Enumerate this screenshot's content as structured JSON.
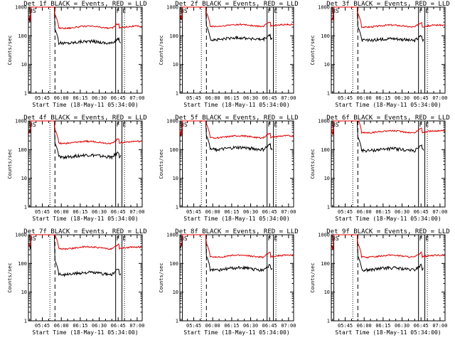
{
  "colors": {
    "events": "#000000",
    "lld": "#e00000",
    "axis": "#000000",
    "background": "#ffffff"
  },
  "chart_data": [
    {
      "type": "line",
      "title": "Det 1f BLACK = Events, RED = LLD",
      "xlabel": "Start Time (18-May-11 05:34:00)",
      "ylabel": "Counts/sec",
      "xticks": [
        "05:45",
        "06:00",
        "06:15",
        "06:30",
        "06:45",
        "07:00"
      ],
      "yticks": [
        "1",
        "10",
        "100",
        "1000"
      ],
      "ylog": true,
      "ylim": [
        1,
        1000
      ],
      "xlim_minutes": [
        0,
        90
      ],
      "markers": [
        "BS",
        "F",
        "E"
      ],
      "series": [
        {
          "name": "Events",
          "level_cps": 60
        },
        {
          "name": "LLD",
          "level_cps": 200
        }
      ]
    },
    {
      "type": "line",
      "title": "Det 2f BLACK = Events, RED = LLD",
      "xlabel": "Start Time (18-May-11 05:34:00)",
      "ylabel": "Counts/sec",
      "xticks": [
        "05:45",
        "06:00",
        "06:15",
        "06:30",
        "06:45",
        "07:00"
      ],
      "yticks": [
        "1",
        "10",
        "100",
        "1000"
      ],
      "ylog": true,
      "ylim": [
        1,
        1000
      ],
      "xlim_minutes": [
        0,
        90
      ],
      "markers": [
        "BS",
        "F",
        "E"
      ],
      "series": [
        {
          "name": "Events",
          "level_cps": 80
        },
        {
          "name": "LLD",
          "level_cps": 230
        }
      ]
    },
    {
      "type": "line",
      "title": "Det 3f BLACK = Events, RED = LLD",
      "xlabel": "Start Time (18-May-11 05:34:00)",
      "ylabel": "Counts/sec",
      "xticks": [
        "05:45",
        "06:00",
        "06:15",
        "06:30",
        "06:45",
        "07:00"
      ],
      "yticks": [
        "1",
        "10",
        "100",
        "1000"
      ],
      "ylog": true,
      "ylim": [
        1,
        1000
      ],
      "xlim_minutes": [
        0,
        90
      ],
      "markers": [
        "BS",
        "F",
        "E"
      ],
      "series": [
        {
          "name": "Events",
          "level_cps": 75
        },
        {
          "name": "LLD",
          "level_cps": 220
        }
      ]
    },
    {
      "type": "line",
      "title": "Det 4f BLACK = Events, RED = LLD",
      "xlabel": "Start Time (18-May-11 05:34:00)",
      "ylabel": "Counts/sec",
      "xticks": [
        "05:45",
        "06:00",
        "06:15",
        "06:30",
        "06:45",
        "07:00"
      ],
      "yticks": [
        "1",
        "10",
        "100",
        "1000"
      ],
      "ylog": true,
      "ylim": [
        1,
        1000
      ],
      "xlim_minutes": [
        0,
        90
      ],
      "markers": [
        "BS",
        "F",
        "E"
      ],
      "series": [
        {
          "name": "Events",
          "level_cps": 60
        },
        {
          "name": "LLD",
          "level_cps": 180
        }
      ]
    },
    {
      "type": "line",
      "title": "Det 5f BLACK = Events, RED = LLD",
      "xlabel": "Start Time (18-May-11 05:34:00)",
      "ylabel": "Counts/sec",
      "xticks": [
        "05:45",
        "06:00",
        "06:15",
        "06:30",
        "06:45",
        "07:00"
      ],
      "yticks": [
        "1",
        "10",
        "100",
        "1000"
      ],
      "ylog": true,
      "ylim": [
        1,
        1000
      ],
      "xlim_minutes": [
        0,
        90
      ],
      "markers": [
        "BS",
        "F",
        "E"
      ],
      "series": [
        {
          "name": "Events",
          "level_cps": 110
        },
        {
          "name": "LLD",
          "level_cps": 280
        }
      ]
    },
    {
      "type": "line",
      "title": "Det 6f BLACK = Events, RED = LLD",
      "xlabel": "Start Time (18-May-11 05:34:00)",
      "ylabel": "Counts/sec",
      "xticks": [
        "05:45",
        "06:00",
        "06:15",
        "06:30",
        "06:45",
        "07:00"
      ],
      "yticks": [
        "1",
        "10",
        "100",
        "1000"
      ],
      "ylog": true,
      "ylim": [
        1,
        1000
      ],
      "xlim_minutes": [
        0,
        90
      ],
      "markers": [
        "BS",
        "F",
        "E"
      ],
      "series": [
        {
          "name": "Events",
          "level_cps": 100
        },
        {
          "name": "LLD",
          "level_cps": 420
        }
      ]
    },
    {
      "type": "line",
      "title": "Det 7f BLACK = Events, RED = LLD",
      "xlabel": "Start Time (18-May-11 05:34:00)",
      "ylabel": "Counts/sec",
      "xticks": [
        "05:45",
        "06:00",
        "06:15",
        "06:30",
        "06:45",
        "07:00"
      ],
      "yticks": [
        "1",
        "10",
        "100",
        "1000"
      ],
      "ylog": true,
      "ylim": [
        1,
        1000
      ],
      "xlim_minutes": [
        0,
        90
      ],
      "markers": [
        "BS",
        "F",
        "E"
      ],
      "series": [
        {
          "name": "Events",
          "level_cps": 45
        },
        {
          "name": "LLD",
          "level_cps": 350
        }
      ]
    },
    {
      "type": "line",
      "title": "Det 8f BLACK = Events, RED = LLD",
      "xlabel": "Start Time (18-May-11 05:34:00)",
      "ylabel": "Counts/sec",
      "xticks": [
        "05:45",
        "06:00",
        "06:15",
        "06:30",
        "06:45",
        "07:00"
      ],
      "yticks": [
        "1",
        "10",
        "100",
        "1000"
      ],
      "ylog": true,
      "ylim": [
        1,
        1000
      ],
      "xlim_minutes": [
        0,
        90
      ],
      "markers": [
        "BS",
        "F",
        "E"
      ],
      "series": [
        {
          "name": "Events",
          "level_cps": 65
        },
        {
          "name": "LLD",
          "level_cps": 180
        }
      ]
    },
    {
      "type": "line",
      "title": "Det 9f BLACK = Events, RED = LLD",
      "xlabel": "Start Time (18-May-11 05:34:00)",
      "ylabel": "Counts/sec",
      "xticks": [
        "05:45",
        "06:00",
        "06:15",
        "06:30",
        "06:45",
        "07:00"
      ],
      "yticks": [
        "1",
        "10",
        "100",
        "1000"
      ],
      "ylog": true,
      "ylim": [
        1,
        1000
      ],
      "xlim_minutes": [
        0,
        90
      ],
      "markers": [
        "BS",
        "F",
        "E"
      ],
      "series": [
        {
          "name": "Events",
          "level_cps": 65
        },
        {
          "name": "LLD",
          "level_cps": 180
        }
      ]
    }
  ]
}
